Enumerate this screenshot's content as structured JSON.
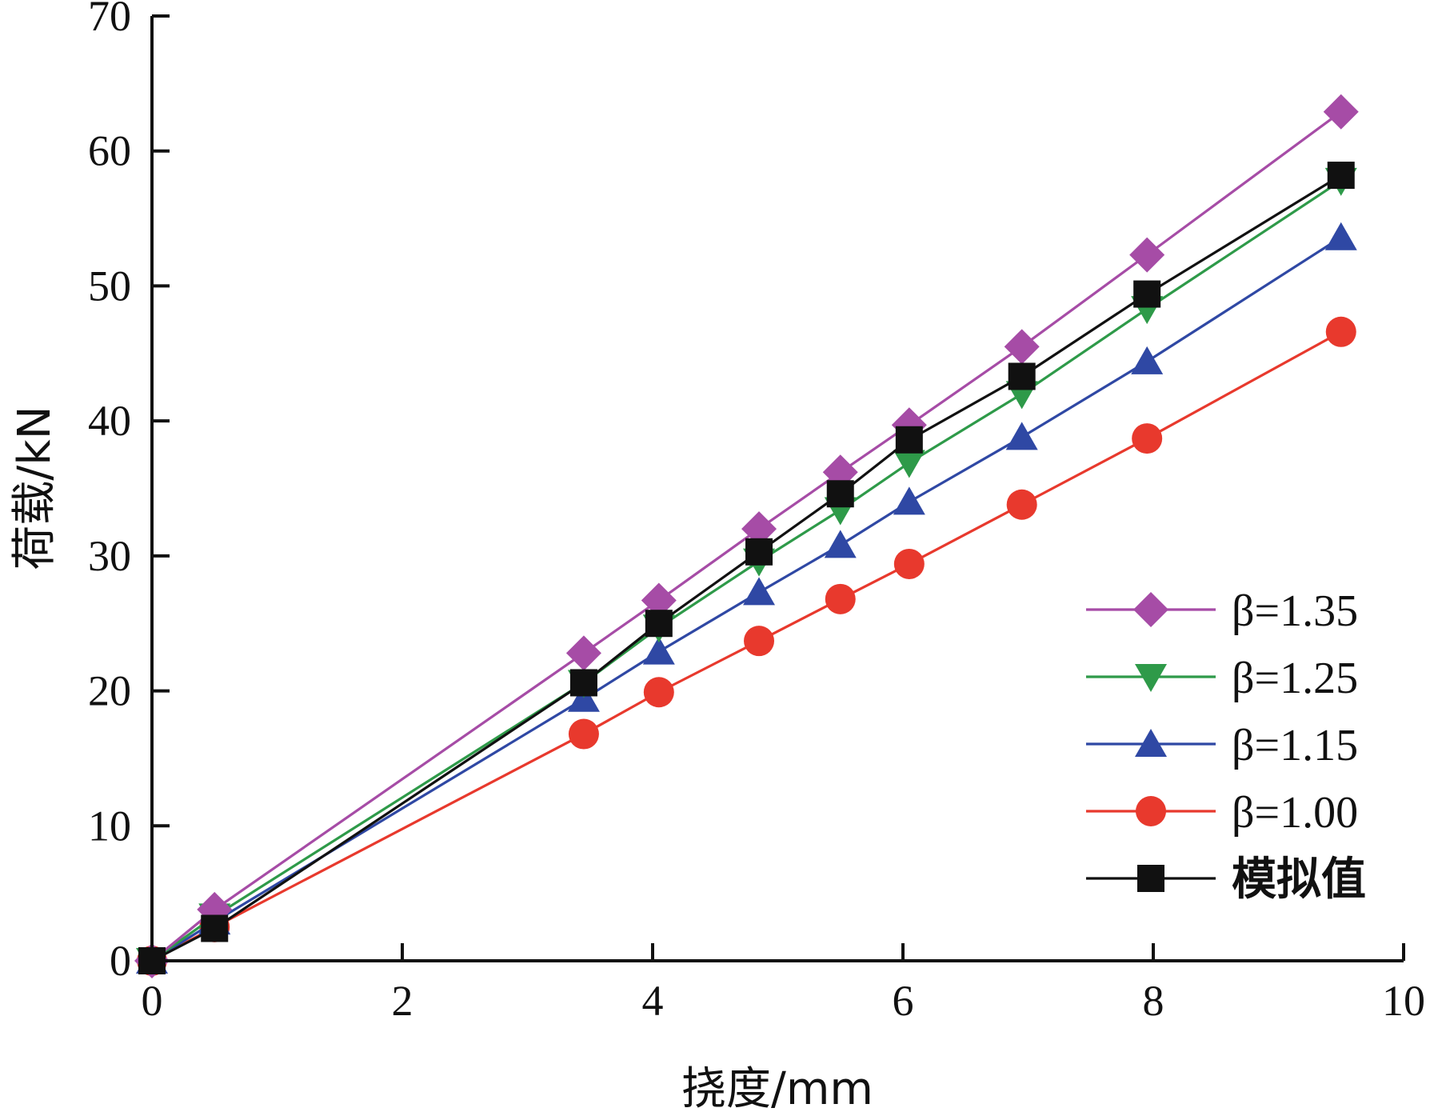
{
  "chart_data": {
    "type": "line",
    "title": "",
    "xlabel": "挠度/mm",
    "ylabel": "荷载/kN",
    "xlim": [
      0,
      10
    ],
    "ylim": [
      0,
      70
    ],
    "xticks": [
      0,
      2,
      4,
      6,
      8,
      10
    ],
    "yticks": [
      0,
      10,
      20,
      30,
      40,
      50,
      60,
      70
    ],
    "grid": false,
    "legend_position": "bottom-right",
    "x": [
      0,
      0.5,
      3.45,
      4.05,
      4.85,
      5.5,
      6.05,
      6.95,
      7.95,
      9.5
    ],
    "series": [
      {
        "name": "β=1.35",
        "marker": "diamond",
        "color": "#a64ca6",
        "values": [
          0,
          3.8,
          22.8,
          26.7,
          32.0,
          36.2,
          39.7,
          45.5,
          52.3,
          62.9
        ]
      },
      {
        "name": "β=1.25",
        "marker": "triangle-down",
        "color": "#2e9a49",
        "values": [
          0,
          3.3,
          20.6,
          24.7,
          29.6,
          33.4,
          36.9,
          42.0,
          48.3,
          57.8
        ]
      },
      {
        "name": "β=1.15",
        "marker": "triangle-up",
        "color": "#2f48a4",
        "values": [
          0,
          2.9,
          19.4,
          22.9,
          27.3,
          30.8,
          34.0,
          38.8,
          44.4,
          53.6
        ]
      },
      {
        "name": "β=1.00",
        "marker": "circle",
        "color": "#e8392d",
        "values": [
          0,
          2.5,
          16.8,
          19.9,
          23.7,
          26.8,
          29.4,
          33.8,
          38.7,
          46.6
        ]
      },
      {
        "name": "模拟值",
        "marker": "square",
        "color": "#111111",
        "values": [
          0,
          2.4,
          20.6,
          25.0,
          30.3,
          34.6,
          38.6,
          43.3,
          49.4,
          58.2
        ]
      }
    ]
  }
}
